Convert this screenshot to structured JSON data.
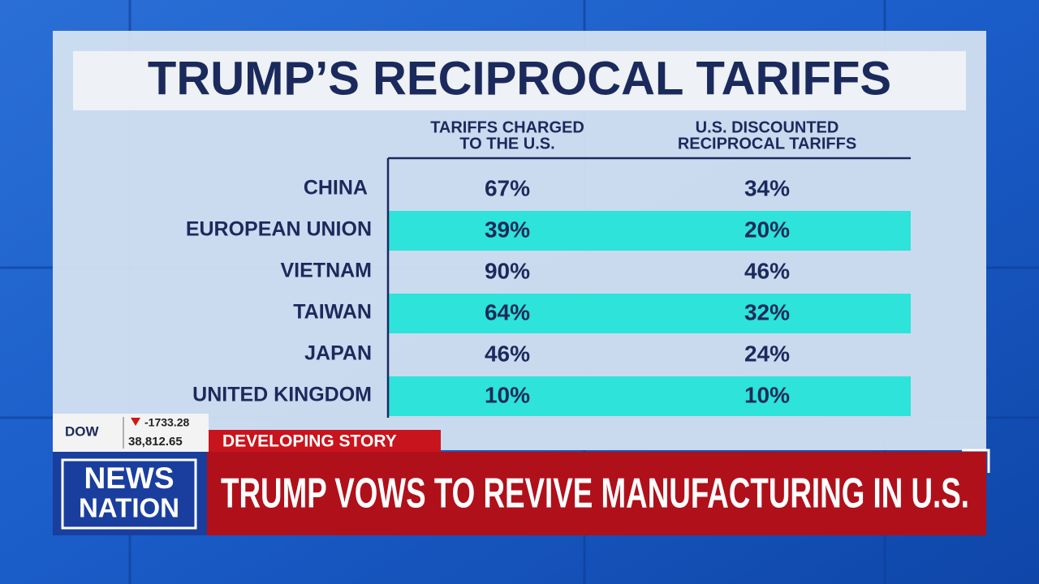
{
  "header": {
    "title": "TRUMP’S RECIPROCAL TARIFFS"
  },
  "table": {
    "columns": [
      [
        "TARIFFS CHARGED",
        "TO THE U.S."
      ],
      [
        "U.S. DISCOUNTED",
        "RECIPROCAL TARIFFS"
      ]
    ],
    "rows": [
      [
        "CHINA",
        "67%",
        "34%"
      ],
      [
        "EUROPEAN UNION",
        "39%",
        "20%"
      ],
      [
        "VIETNAM",
        "90%",
        "46%"
      ],
      [
        "TAIWAN",
        "64%",
        "32%"
      ],
      [
        "JAPAN",
        "46%",
        "24%"
      ],
      [
        "UNITED KINGDOM",
        "10%",
        "10%"
      ]
    ]
  },
  "ticker": {
    "index": "DOW",
    "change": "-1733.28",
    "value": "38,812.65"
  },
  "banner": {
    "label": "DEVELOPING STORY",
    "headline": "TRUMP VOWS TO REVIVE MANUFACTURING IN U.S."
  },
  "logo": {
    "line1": "NEWS",
    "line2": "NATION"
  }
}
